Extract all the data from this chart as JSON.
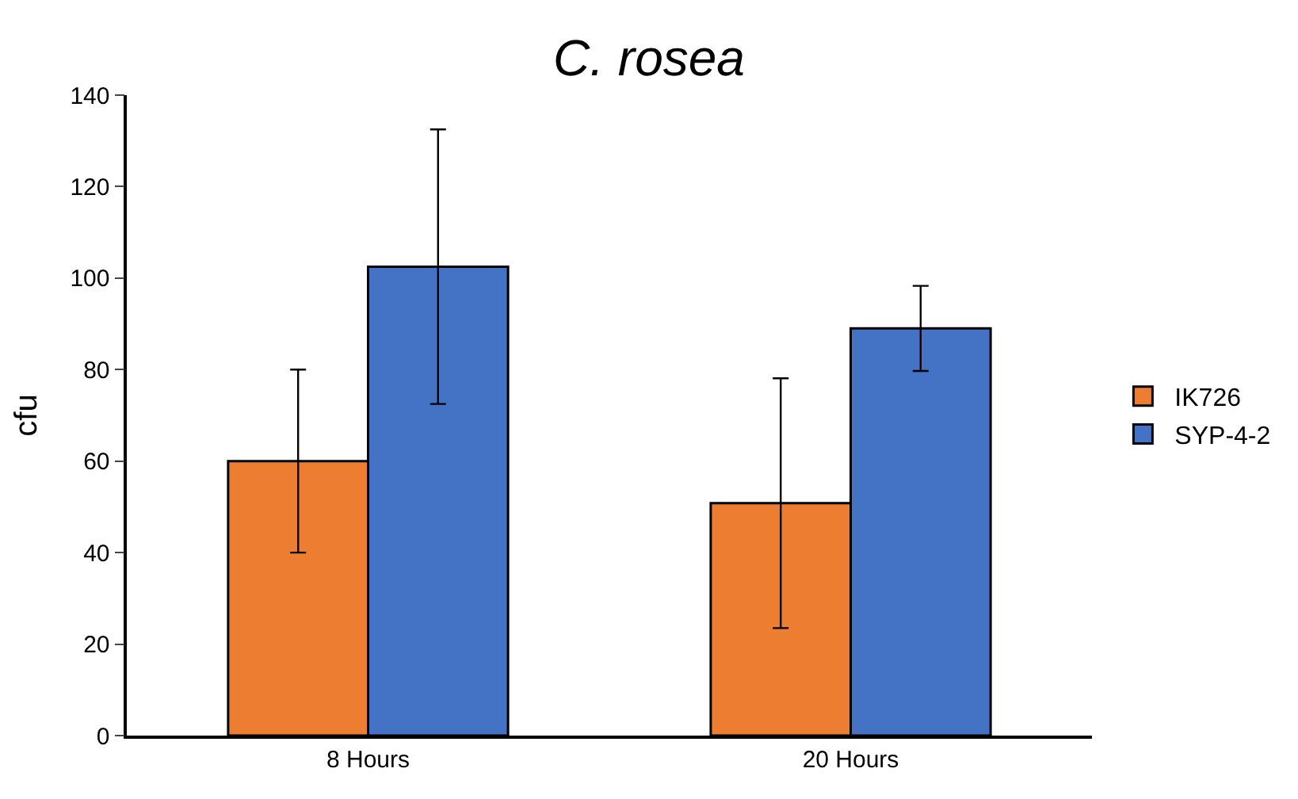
{
  "chart_data": {
    "type": "bar",
    "title": "C. rosea",
    "ylabel": "cfu",
    "categories": [
      "8 Hours",
      "20 Hours"
    ],
    "series": [
      {
        "name": "IK726",
        "color": "#ed7d31",
        "values": [
          60,
          50.8
        ],
        "errors": [
          20,
          27.3
        ]
      },
      {
        "name": "SYP-4-2",
        "color": "#4472c4",
        "values": [
          102.5,
          89
        ],
        "errors": [
          30,
          9.3
        ]
      }
    ],
    "ylim": [
      0,
      140
    ],
    "yticks": [
      0,
      20,
      40,
      60,
      80,
      100,
      120,
      140
    ],
    "grid": false,
    "legend": "right"
  }
}
